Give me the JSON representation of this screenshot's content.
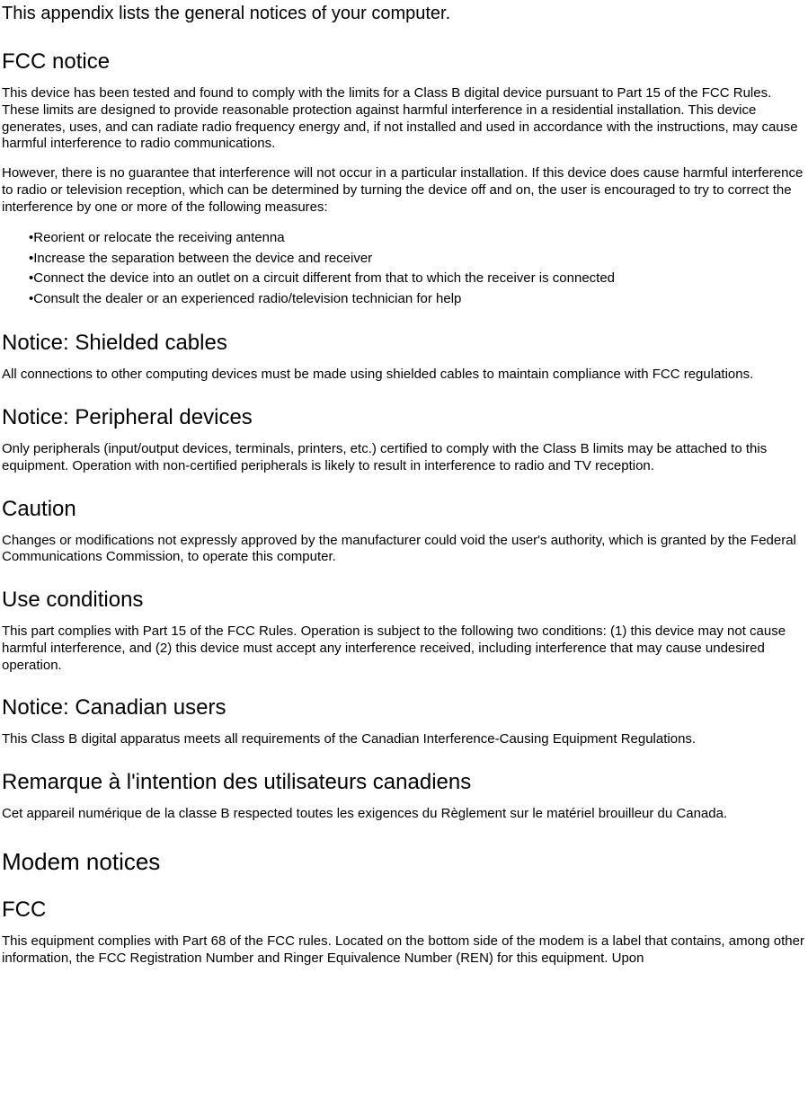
{
  "intro": "This appendix lists the general notices of your computer.",
  "sections": {
    "fcc_notice": {
      "title": "FCC notice",
      "p1": "This device has been tested and found to comply with the limits for a Class B digital device pursuant to Part 15 of the FCC Rules.  These limits are designed to provide reasonable protection against harmful interference in a residential installation.  This device generates, uses, and can radiate radio frequency energy and, if not installed and used in accordance with the instructions, may cause harmful interference to radio communications.",
      "p2": "However, there is no guarantee that interference will not occur in a particular installation.  If this device does cause harmful interference to radio or television reception, which can be determined by turning the device off and on, the user is encouraged to try to correct the interference by one or more of the following measures:",
      "bullets": [
        "Reorient or relocate the receiving antenna",
        "Increase the separation between the device and receiver",
        "Connect the device into an outlet on a circuit different from that to which the receiver is connected",
        "Consult the dealer or an experienced radio/television technician for help"
      ]
    },
    "shielded": {
      "title": "Notice:  Shielded cables",
      "p1": "All connections to other computing devices must be made using shielded cables to maintain compliance with FCC regulations."
    },
    "peripheral": {
      "title": "Notice: Peripheral devices",
      "p1": "Only peripherals (input/output devices, terminals, printers, etc.) certified to comply with the Class B limits may be attached to this equipment.  Operation with non-certified peripherals is likely to result in interference to radio and TV reception."
    },
    "caution": {
      "title": "Caution",
      "p1": "Changes or modifications not expressly approved by the manufacturer could void the user's authority, which is granted by the Federal Communications Commission, to operate this computer."
    },
    "use_conditions": {
      "title": "Use conditions",
      "p1": "This part complies with Part 15 of the FCC Rules.  Operation is subject to the following two conditions: (1) this device may not cause harmful interference, and (2) this device must accept any interference received, including interference that may cause undesired operation."
    },
    "canadian": {
      "title": "Notice: Canadian users",
      "p1": "This Class B digital apparatus meets all requirements of the Canadian Interference-Causing Equipment Regulations."
    },
    "remarque": {
      "title": "Remarque à l'intention des utilisateurs canadiens",
      "p1": "Cet appareil numérique de la classe B respected toutes les exigences du Règlement sur le matériel brouilleur du Canada."
    },
    "modem_notices": {
      "title": "Modem notices"
    },
    "fcc2": {
      "title": "FCC",
      "p1": "This equipment complies with Part 68 of the FCC rules.  Located on the bottom side of the modem is a label that contains, among other information, the FCC Registration Number and Ringer Equivalence Number (REN) for this equipment.  Upon"
    }
  }
}
